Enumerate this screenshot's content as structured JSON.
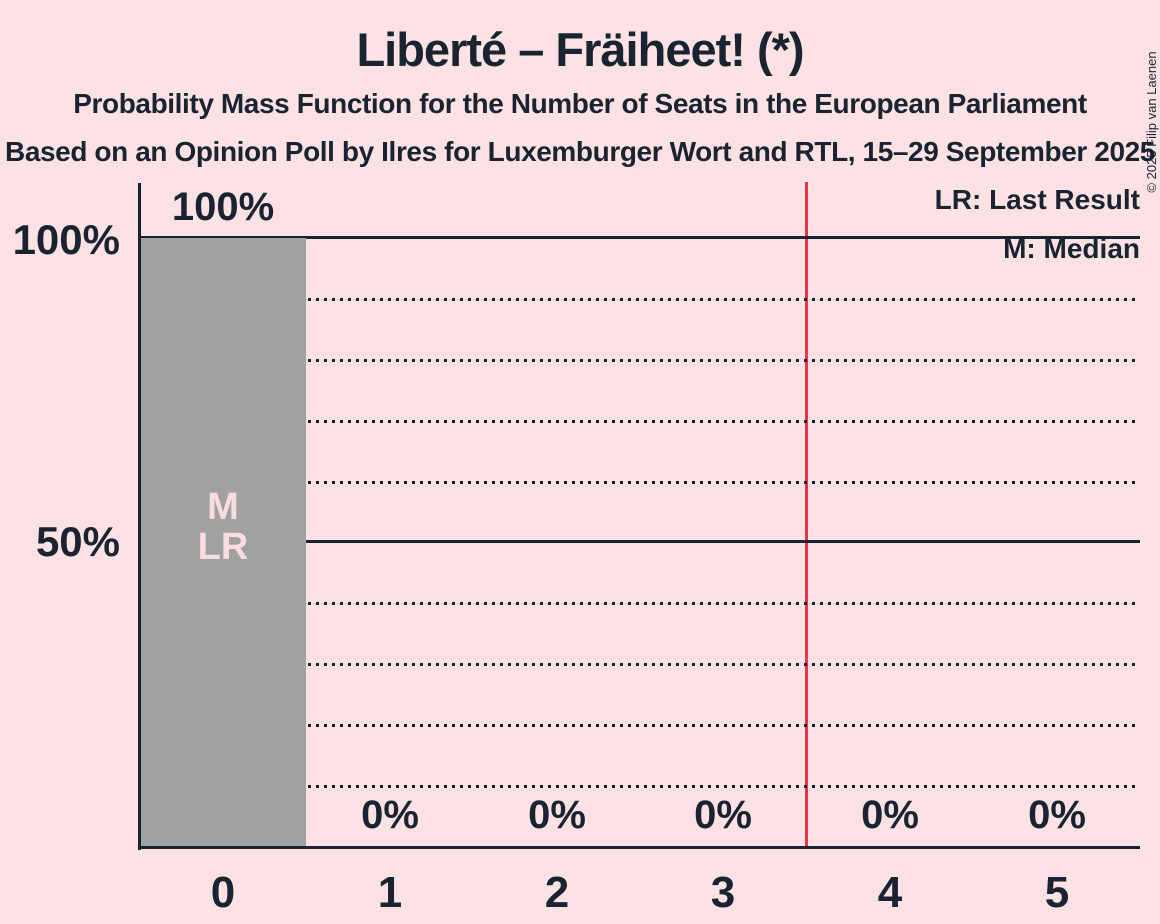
{
  "title": "Liberté – Fräiheet! (*)",
  "subtitle": "Probability Mass Function for the Number of Seats in the European Parliament",
  "source_line": "Based on an Opinion Poll by Ilres for Luxemburger Wort and RTL, 15–29 September 2025",
  "copyright": "© 2025 Filip van Laenen",
  "legend": {
    "lr": "LR: Last Result",
    "m": "M: Median"
  },
  "y_axis": {
    "ticks": [
      "100%",
      "50%"
    ]
  },
  "colors": {
    "background": "#fce2e5",
    "ink": "#1a2430",
    "bar": "#a1a1a1",
    "bar_annotation": "#f9dde1",
    "threshold_line": "#e83748"
  },
  "chart_data": {
    "type": "bar",
    "title": "Liberté – Fräiheet! (*)",
    "categories": [
      "0",
      "1",
      "2",
      "3",
      "4",
      "5"
    ],
    "values": [
      100,
      0,
      0,
      0,
      0,
      0
    ],
    "value_labels": [
      "100%",
      "0%",
      "0%",
      "0%",
      "0%",
      "0%"
    ],
    "ylim": [
      0,
      100
    ],
    "y_tick_labels": [
      "100%",
      "50%"
    ],
    "grid": {
      "solid_pct": [
        100,
        50
      ],
      "dotted_pct": [
        90,
        80,
        70,
        60,
        40,
        30,
        20,
        10
      ]
    },
    "median_seats": 0,
    "last_result_seats": 0,
    "threshold_line_x": 3.5,
    "annotations": {
      "median": "M",
      "last_result": "LR"
    },
    "legend_entries": [
      "LR: Last Result",
      "M: Median"
    ],
    "legend_position": "top-right"
  }
}
